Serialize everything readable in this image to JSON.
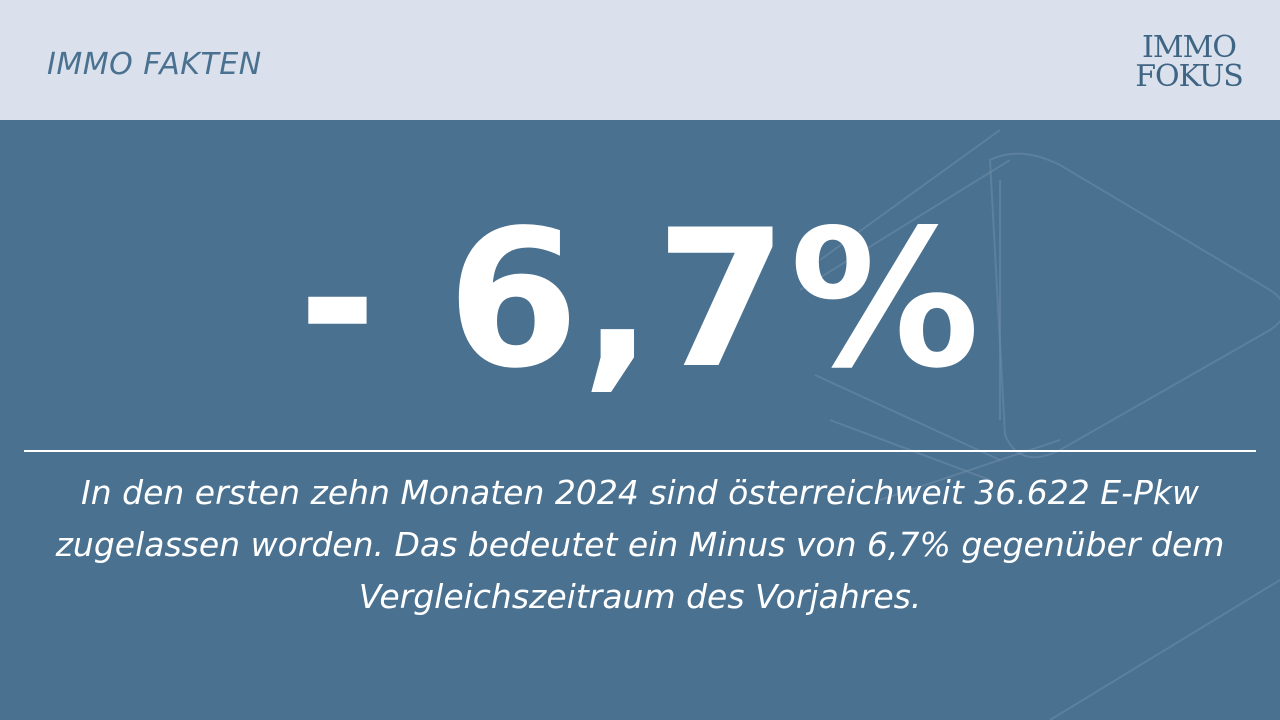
{
  "header": {
    "label": "IMMO FAKTEN",
    "logo_line1": "IMMO",
    "logo_line2": "FOKUS"
  },
  "main": {
    "big_value": "- 6,7%",
    "description": "In den ersten zehn Monaten 2024 sind österreichweit 36.622 E-Pkw zugelassen worden. Das bedeutet ein Minus von 6,7% gegenüber dem Vergleichszeitraum des Vorjahres."
  },
  "colors": {
    "background": "#4a7190",
    "header_background": "#dae1ec",
    "text_primary": "#ffffff",
    "brand": "#4a7190"
  }
}
